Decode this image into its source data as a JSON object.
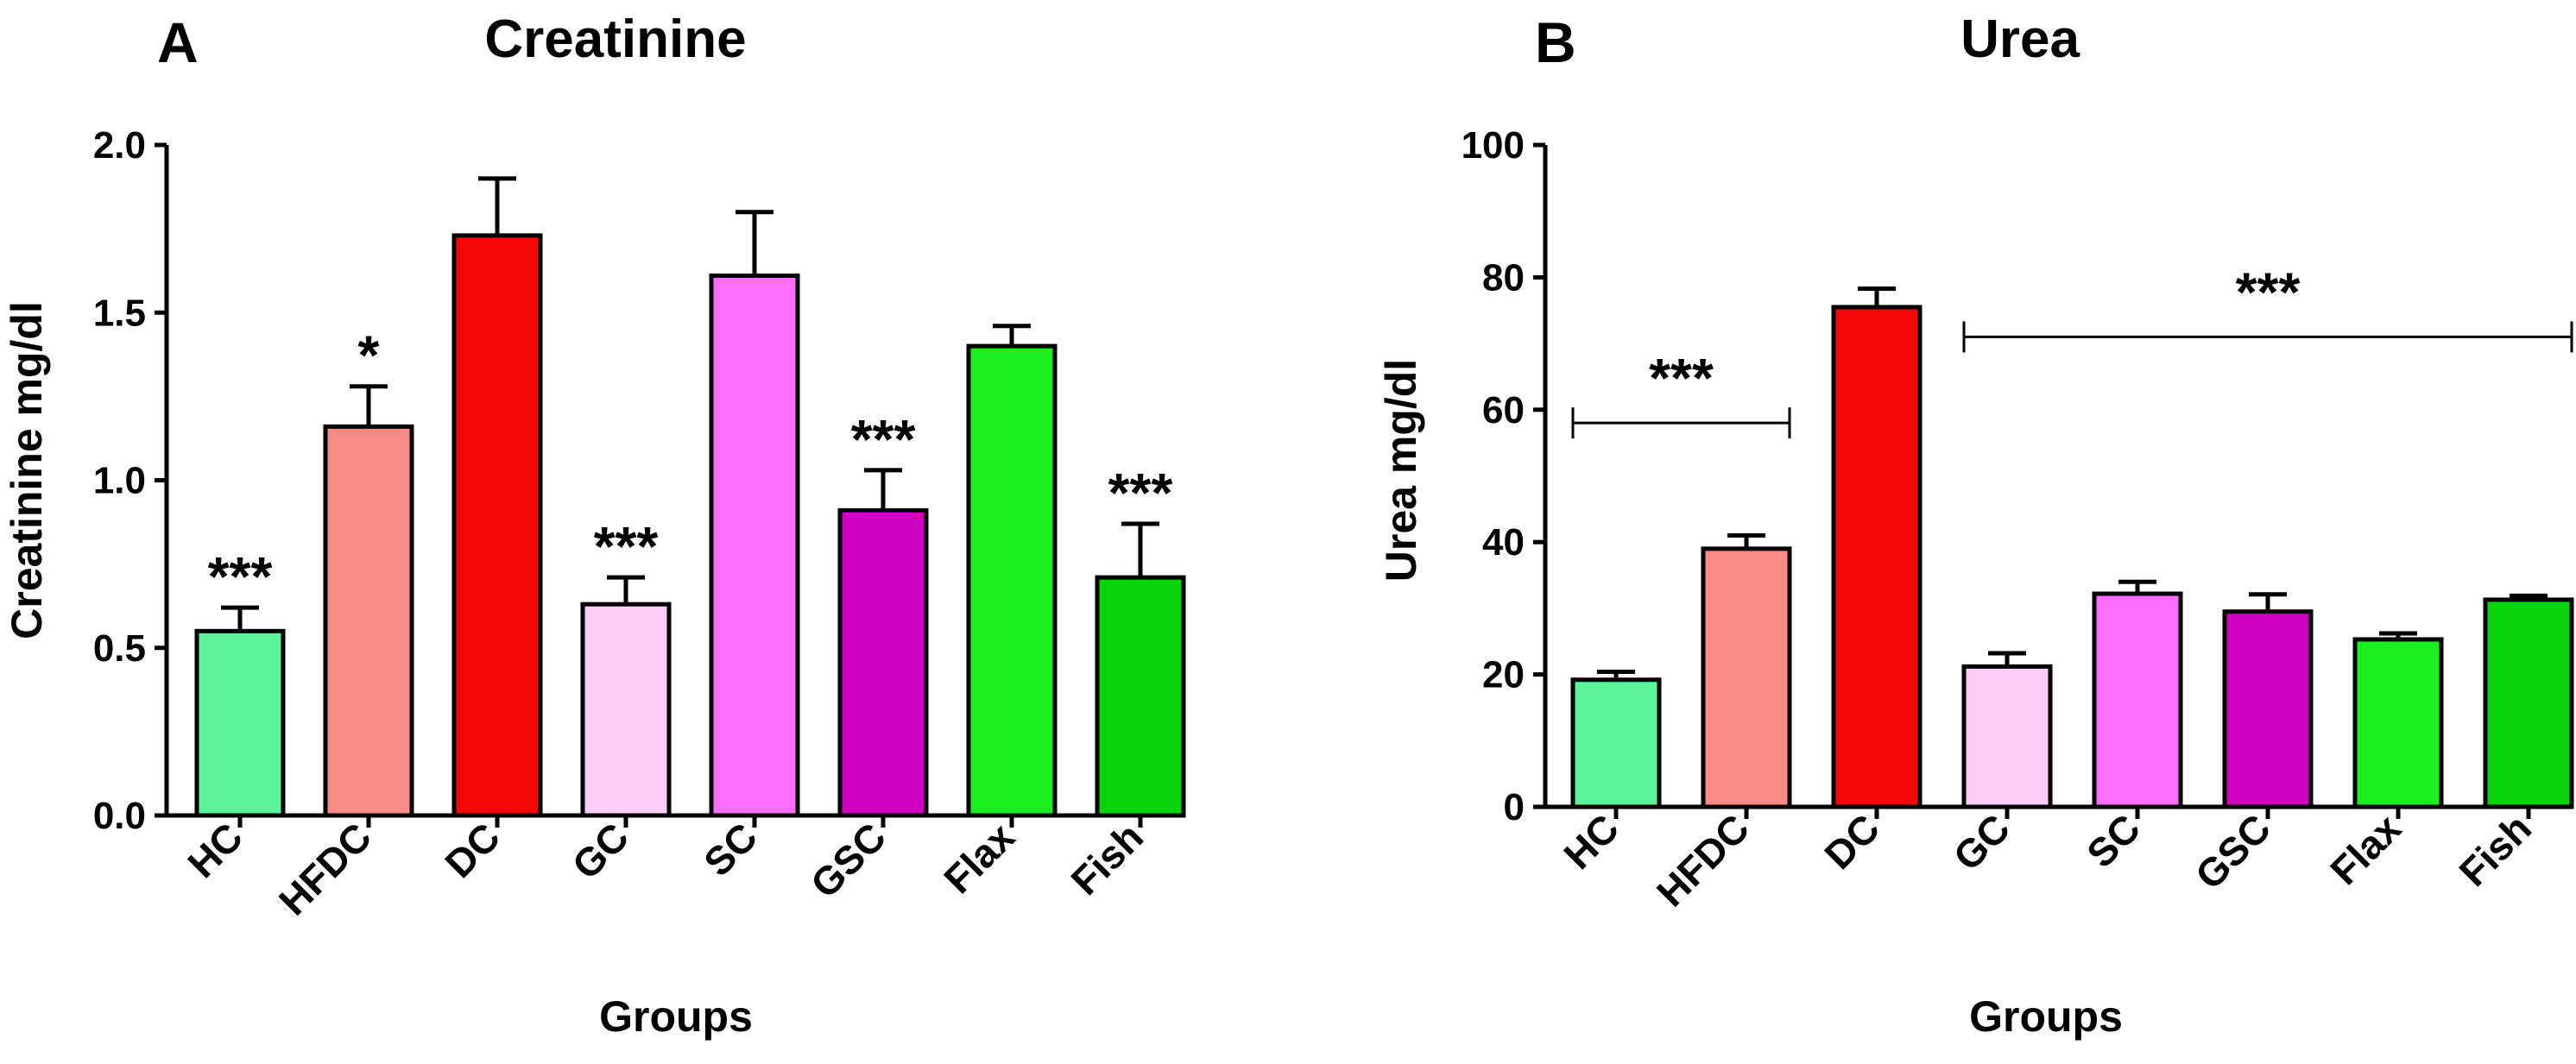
{
  "panels": [
    {
      "letter": "A",
      "chart_data": {
        "type": "bar",
        "title": "Creatinine",
        "xlabel": "Groups",
        "ylabel": "Creatinine mg/dl",
        "categories": [
          "HC",
          "HFDC",
          "DC",
          "GC",
          "SC",
          "GSC",
          "Flax",
          "Fish"
        ],
        "values": [
          0.55,
          1.16,
          1.73,
          0.63,
          1.61,
          0.91,
          1.4,
          0.71
        ],
        "errors": [
          0.07,
          0.12,
          0.17,
          0.08,
          0.19,
          0.12,
          0.06,
          0.16
        ],
        "colors": [
          "#5cf29a",
          "#f98b86",
          "#f50707",
          "#fcccf7",
          "#fc6efa",
          "#d000c0",
          "#1bee1f",
          "#08d40c"
        ],
        "ylim": [
          0,
          2.0
        ],
        "yticks": [
          "0.0",
          "0.5",
          "1.0",
          "1.5",
          "2.0"
        ],
        "significance": [
          "***",
          "*",
          "",
          "***",
          "",
          "***",
          "",
          "***"
        ]
      }
    },
    {
      "letter": "B",
      "chart_data": {
        "type": "bar",
        "title": "Urea",
        "xlabel": "Groups",
        "ylabel": "Urea mg/dl",
        "categories": [
          "HC",
          "HFDC",
          "DC",
          "GC",
          "SC",
          "GSC",
          "Flax",
          "Fish"
        ],
        "values": [
          19.2,
          39.0,
          75.5,
          21.2,
          32.2,
          29.5,
          25.3,
          31.3
        ],
        "errors": [
          1.2,
          2.0,
          2.8,
          2.0,
          1.8,
          2.6,
          0.9,
          0.6
        ],
        "colors": [
          "#5cf29a",
          "#f98b86",
          "#f50707",
          "#fcccf7",
          "#fc6efa",
          "#d000c0",
          "#1bee1f",
          "#08d40c"
        ],
        "ylim": [
          0,
          100
        ],
        "yticks": [
          "0",
          "20",
          "40",
          "60",
          "80",
          "100"
        ],
        "brackets": [
          {
            "from": 0,
            "to": 1,
            "y": 58,
            "label": "***"
          },
          {
            "from": 3,
            "to": 7,
            "y": 71,
            "label": "***"
          }
        ]
      }
    }
  ]
}
